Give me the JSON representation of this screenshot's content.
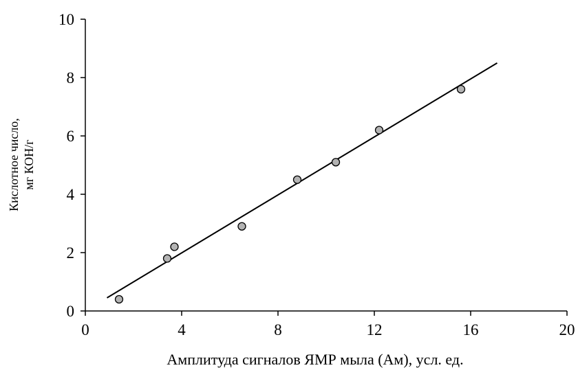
{
  "chart_data": {
    "type": "scatter",
    "title": "",
    "xlabel": "Амплитуда сигналов ЯМР мыла (Ам), усл. ед.",
    "ylabel_lines": [
      "Кислотное число,",
      "мг КОН/г"
    ],
    "xlim": [
      0,
      20
    ],
    "ylim": [
      0,
      10
    ],
    "x_ticks": [
      0,
      4,
      8,
      12,
      16,
      20
    ],
    "y_ticks": [
      0,
      2,
      4,
      6,
      8,
      10
    ],
    "grid": false,
    "legend": "none",
    "points": [
      {
        "x": 1.4,
        "y": 0.4
      },
      {
        "x": 3.4,
        "y": 1.8
      },
      {
        "x": 3.7,
        "y": 2.2
      },
      {
        "x": 6.5,
        "y": 2.9
      },
      {
        "x": 8.8,
        "y": 4.5
      },
      {
        "x": 10.4,
        "y": 5.1
      },
      {
        "x": 12.2,
        "y": 6.2
      },
      {
        "x": 15.6,
        "y": 7.6
      }
    ],
    "trendline": {
      "x": [
        0.9,
        17.1
      ],
      "y": [
        0.45,
        8.5
      ]
    },
    "colors": {
      "marker_fill": "#b3b3b3",
      "marker_stroke": "#000000",
      "line": "#000000",
      "axis": "#000000"
    }
  }
}
